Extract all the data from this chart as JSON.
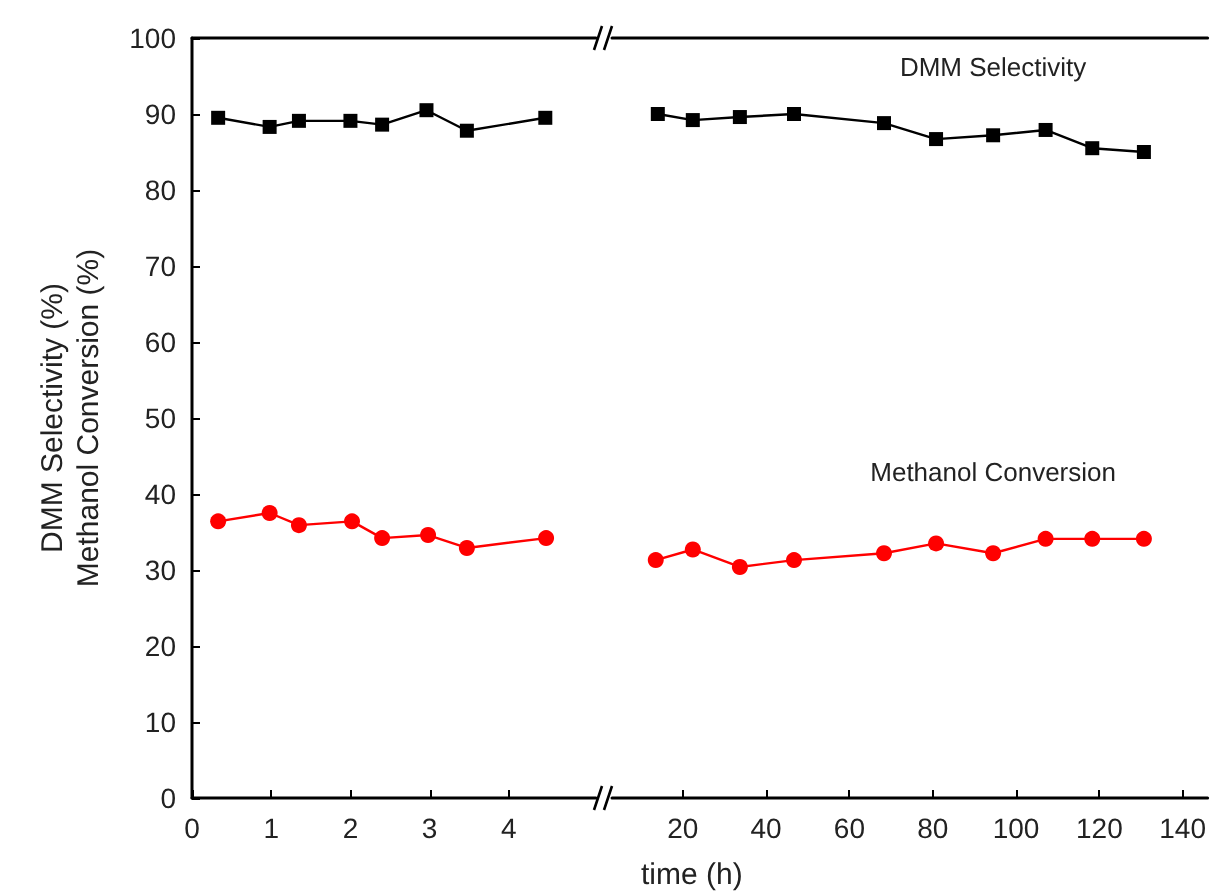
{
  "chart_data": [
    {
      "type": "line",
      "ylabel": "DMM Selectivity (%)\nMethanol Conversion (%)",
      "xlim": [
        0,
        5.1
      ],
      "xticks": [
        0,
        1,
        2,
        3,
        4
      ],
      "ylim": [
        0,
        100
      ],
      "yticks": [
        0,
        10,
        20,
        30,
        40,
        50,
        60,
        70,
        80,
        90,
        100
      ],
      "grid": false,
      "legend": false,
      "series": [
        {
          "color": "#000000",
          "marker": "square",
          "x": [
            0.33,
            0.98,
            1.35,
            2.0,
            2.4,
            2.96,
            3.47,
            4.46
          ],
          "values": [
            89.5,
            88.3,
            89.1,
            89.1,
            88.6,
            90.5,
            87.8,
            89.5
          ]
        },
        {
          "color": "#ff0000",
          "marker": "circle",
          "x": [
            0.33,
            0.98,
            1.35,
            2.02,
            2.4,
            2.98,
            3.47,
            4.47
          ],
          "values": [
            36.4,
            37.5,
            35.9,
            36.4,
            34.2,
            34.6,
            32.9,
            34.2
          ]
        }
      ]
    },
    {
      "type": "line",
      "xlabel": "time (h)",
      "xlim": [
        3,
        146
      ],
      "xticks": [
        20,
        40,
        60,
        80,
        100,
        120,
        140
      ],
      "ylim": [
        0,
        100
      ],
      "yticks": [
        0,
        10,
        20,
        30,
        40,
        50,
        60,
        70,
        80,
        90,
        100
      ],
      "tick_labels": "x",
      "grid": false,
      "legend": false,
      "series": [
        {
          "name": "DMM Selectivity",
          "color": "#000000",
          "marker": "square",
          "x": [
            14,
            22.4,
            33.7,
            46.7,
            68.3,
            80.8,
            94.5,
            107.1,
            118.3,
            130.7
          ],
          "values": [
            90.0,
            89.2,
            89.6,
            90.0,
            88.8,
            86.7,
            87.2,
            87.9,
            85.5,
            85.0
          ]
        },
        {
          "name": "Methanol Conversion",
          "color": "#ff0000",
          "marker": "circle",
          "x": [
            13.5,
            22.4,
            33.7,
            46.7,
            68.3,
            80.8,
            94.5,
            107.1,
            118.3,
            130.7
          ],
          "values": [
            31.3,
            32.7,
            30.4,
            31.3,
            32.2,
            33.5,
            32.2,
            34.1,
            34.1,
            34.1
          ]
        }
      ]
    }
  ]
}
